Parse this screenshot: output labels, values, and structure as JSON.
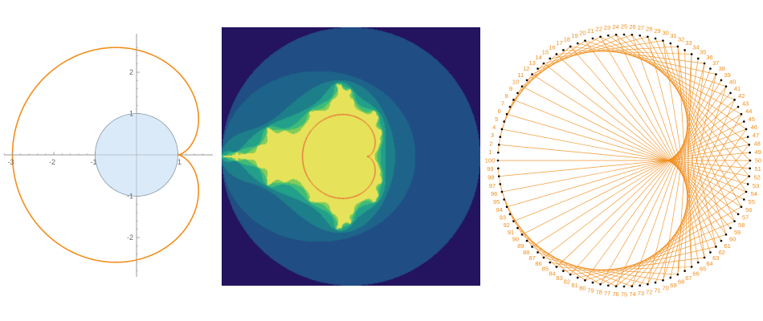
{
  "colors": {
    "curve": "#f28e1c",
    "circle_fill": "#dbeaf9",
    "circle_stroke": "#8a9aa8",
    "axis": "#9a9a9a",
    "tick_text": "#666666",
    "boundary": "#e8402a",
    "dot": "#000000",
    "mandel_levels": [
      "#24135f",
      "#213a7c",
      "#1f4d84",
      "#1e6389",
      "#1d7f89",
      "#23a08a",
      "#3fbb78",
      "#83cc58",
      "#e6e35a"
    ]
  },
  "cardioid_plot": {
    "x_ticks": [
      "-3",
      "-2",
      "-1",
      "1"
    ],
    "y_ticks": [
      "2",
      "1",
      "-1",
      "-2"
    ],
    "x_tick_values": [
      -3,
      -2,
      -1,
      1
    ],
    "y_tick_values": [
      2,
      1,
      -1,
      -2
    ],
    "circle_radius": 1,
    "curve": "r = 2 - 2cos(theta), shifted +1 on x"
  },
  "mandelbrot_plot": {
    "escape_radius_levels": [
      2.0,
      1.55,
      1.2,
      0.97,
      0.8,
      0.63,
      0.5,
      0.38
    ],
    "iterations": 2
  },
  "times_table": {
    "points": 100,
    "multiplier": 2,
    "labels": [
      "1",
      "2",
      "3",
      "4",
      "5",
      "6",
      "7",
      "8",
      "9",
      "10",
      "11",
      "12",
      "13",
      "14",
      "15",
      "16",
      "17",
      "18",
      "19",
      "20",
      "21",
      "22",
      "23",
      "24",
      "25",
      "26",
      "27",
      "28",
      "29",
      "30",
      "31",
      "32",
      "33",
      "34",
      "35",
      "36",
      "37",
      "38",
      "39",
      "40",
      "41",
      "42",
      "43",
      "44",
      "45",
      "46",
      "47",
      "48",
      "49",
      "50",
      "51",
      "52",
      "53",
      "54",
      "55",
      "56",
      "57",
      "58",
      "59",
      "60",
      "61",
      "62",
      "63",
      "64",
      "65",
      "66",
      "67",
      "68",
      "69",
      "70",
      "71",
      "72",
      "73",
      "74",
      "75",
      "76",
      "77",
      "78",
      "79",
      "80",
      "81",
      "82",
      "83",
      "84",
      "85",
      "86",
      "87",
      "88",
      "89",
      "90",
      "91",
      "92",
      "93",
      "94",
      "95",
      "96",
      "97",
      "98",
      "99",
      "100"
    ]
  }
}
